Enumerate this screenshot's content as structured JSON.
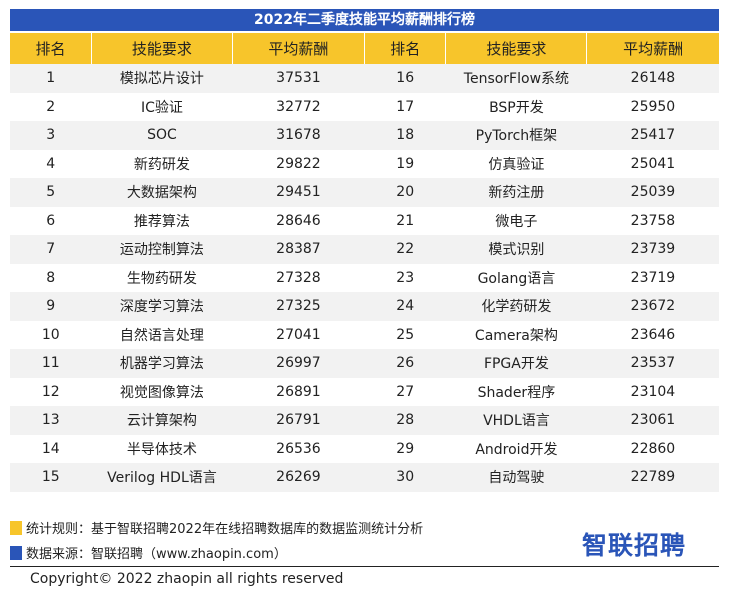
{
  "chart_data": {
    "type": "table",
    "title": "2022年二季度技能平均薪酬排行榜",
    "columns": [
      "排名",
      "技能要求",
      "平均薪酬",
      "排名",
      "技能要求",
      "平均薪酬"
    ],
    "rows": [
      {
        "left": {
          "rank": "1",
          "skill": "模拟芯片设计",
          "salary": 37531
        },
        "right": {
          "rank": "16",
          "skill": "TensorFlow系统",
          "salary": 26148
        }
      },
      {
        "left": {
          "rank": "2",
          "skill": "IC验证",
          "salary": 32772
        },
        "right": {
          "rank": "17",
          "skill": "BSP开发",
          "salary": 25950
        }
      },
      {
        "left": {
          "rank": "3",
          "skill": "SOC",
          "salary": 31678
        },
        "right": {
          "rank": "18",
          "skill": "PyTorch框架",
          "salary": 25417
        }
      },
      {
        "left": {
          "rank": "4",
          "skill": "新药研发",
          "salary": 29822
        },
        "right": {
          "rank": "19",
          "skill": "仿真验证",
          "salary": 25041
        }
      },
      {
        "left": {
          "rank": "5",
          "skill": "大数据架构",
          "salary": 29451
        },
        "right": {
          "rank": "20",
          "skill": "新药注册",
          "salary": 25039
        }
      },
      {
        "left": {
          "rank": "6",
          "skill": "推荐算法",
          "salary": 28646
        },
        "right": {
          "rank": "21",
          "skill": "微电子",
          "salary": 23758
        }
      },
      {
        "left": {
          "rank": "7",
          "skill": "运动控制算法",
          "salary": 28387
        },
        "right": {
          "rank": "22",
          "skill": "模式识别",
          "salary": 23739
        }
      },
      {
        "left": {
          "rank": "8",
          "skill": "生物药研发",
          "salary": 27328
        },
        "right": {
          "rank": "23",
          "skill": "Golang语言",
          "salary": 23719
        }
      },
      {
        "left": {
          "rank": "9",
          "skill": "深度学习算法",
          "salary": 27325
        },
        "right": {
          "rank": "24",
          "skill": "化学药研发",
          "salary": 23672
        }
      },
      {
        "left": {
          "rank": "10",
          "skill": "自然语言处理",
          "salary": 27041
        },
        "right": {
          "rank": "25",
          "skill": "Camera架构",
          "salary": 23646
        }
      },
      {
        "left": {
          "rank": "11",
          "skill": "机器学习算法",
          "salary": 26997
        },
        "right": {
          "rank": "26",
          "skill": "FPGA开发",
          "salary": 23537
        }
      },
      {
        "left": {
          "rank": "12",
          "skill": "视觉图像算法",
          "salary": 26891
        },
        "right": {
          "rank": "27",
          "skill": "Shader程序",
          "salary": 23104
        }
      },
      {
        "left": {
          "rank": "13",
          "skill": "云计算架构",
          "salary": 26791
        },
        "right": {
          "rank": "28",
          "skill": "VHDL语言",
          "salary": 23061
        }
      },
      {
        "left": {
          "rank": "14",
          "skill": "半导体技术",
          "salary": 26536
        },
        "right": {
          "rank": "29",
          "skill": "Android开发",
          "salary": 22860
        }
      },
      {
        "left": {
          "rank": "15",
          "skill": "Verilog HDL语言",
          "salary": 26269
        },
        "right": {
          "rank": "30",
          "skill": "自动驾驶",
          "salary": 22789
        }
      }
    ]
  },
  "footer": {
    "rule_text": "统计规则：基于智联招聘2022年在线招聘数据库的数据监测统计分析",
    "source_text": "数据来源：智联招聘（www.zhaopin.com）",
    "logo_text": "智联招聘",
    "copyright": "Copyright© 2022 zhaopin all rights reserved"
  },
  "colors": {
    "title_bg": "#2a55b8",
    "header_bg": "#f7c52b",
    "row_alt_bg": "#f2f2f2",
    "legend_yellow": "#f7c52b",
    "legend_blue": "#2a55b8",
    "logo": "#2a55b8"
  }
}
